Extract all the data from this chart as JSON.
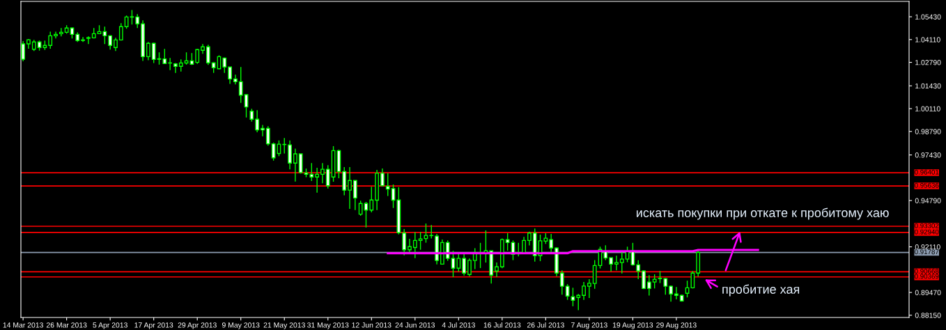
{
  "chart_data": {
    "type": "candlestick",
    "categories": [
      "14 Mar 2013",
      null,
      null,
      null,
      null,
      null,
      null,
      null,
      "26 Mar 2013",
      null,
      null,
      null,
      null,
      null,
      null,
      null,
      "5 Apr 2013",
      null,
      null,
      null,
      null,
      null,
      null,
      null,
      "17 Apr 2013",
      null,
      null,
      null,
      null,
      null,
      null,
      null,
      "29 Apr 2013",
      null,
      null,
      null,
      null,
      null,
      null,
      null,
      "9 May 2013",
      null,
      null,
      null,
      null,
      null,
      null,
      null,
      "21 May 2013",
      null,
      null,
      null,
      null,
      null,
      null,
      null,
      "31 May 2013",
      null,
      null,
      null,
      null,
      null,
      null,
      null,
      "12 Jun 2013",
      null,
      null,
      null,
      null,
      null,
      null,
      null,
      "24 Jun 2013",
      null,
      null,
      null,
      null,
      null,
      null,
      null,
      "4 Jul 2013",
      null,
      null,
      null,
      null,
      null,
      null,
      null,
      "16 Jul 2013",
      null,
      null,
      null,
      null,
      null,
      null,
      null,
      "26 Jul 2013",
      null,
      null,
      null,
      null,
      null,
      null,
      null,
      "7 Aug 2013",
      null,
      null,
      null,
      null,
      null,
      null,
      null,
      "19 Aug 2013",
      null,
      null,
      null,
      null,
      null,
      null,
      null,
      "29 Aug 2013",
      null,
      null,
      null,
      null,
      null,
      null,
      null,
      null,
      null,
      null,
      null,
      null,
      null,
      null,
      null,
      null,
      null,
      null,
      null,
      null,
      null,
      null,
      null,
      null,
      null,
      null,
      null,
      null,
      null,
      null,
      null,
      null,
      null,
      null,
      null,
      null,
      null,
      null,
      null,
      null,
      null,
      null
    ],
    "ohlc": [
      [
        1.0386,
        1.0402,
        1.0285,
        1.0297
      ],
      [
        1.0386,
        1.0414,
        1.0358,
        1.041
      ],
      [
        1.0355,
        1.0409,
        1.0345,
        1.0397
      ],
      [
        1.0397,
        1.0405,
        1.0347,
        1.0365
      ],
      [
        1.0365,
        1.0405,
        1.0351,
        1.0377
      ],
      [
        1.0377,
        1.0457,
        1.0358,
        1.0433
      ],
      [
        1.0433,
        1.0457,
        1.0417,
        1.0441
      ],
      [
        1.0445,
        1.0478,
        1.0429,
        1.0453
      ],
      [
        1.0453,
        1.0494,
        1.0445,
        1.0478
      ],
      [
        1.0478,
        1.0482,
        1.0417,
        1.0441
      ],
      [
        1.0441,
        1.0453,
        1.0397,
        1.0405
      ],
      [
        1.0409,
        1.0425,
        1.0397,
        1.0406
      ],
      [
        1.0418,
        1.0429,
        1.0385,
        1.0422
      ],
      [
        1.0421,
        1.0478,
        1.0417,
        1.0445
      ],
      [
        1.0445,
        1.0494,
        1.0445,
        1.0457
      ],
      [
        1.0457,
        1.0486,
        1.0385,
        1.0433
      ],
      [
        1.0433,
        1.0437,
        1.0353,
        1.0377
      ],
      [
        1.0365,
        1.0421,
        1.0345,
        1.0409
      ],
      [
        1.0409,
        1.0506,
        1.0405,
        1.0486
      ],
      [
        1.0486,
        1.055,
        1.0474,
        1.0542
      ],
      [
        1.0541,
        1.0582,
        1.0498,
        1.0543
      ],
      [
        1.0542,
        1.0558,
        1.0478,
        1.0502
      ],
      [
        1.0502,
        1.0522,
        1.0287,
        1.0312
      ],
      [
        1.0312,
        1.0397,
        1.0291,
        1.0389
      ],
      [
        1.0389,
        1.0393,
        1.0275,
        1.0296
      ],
      [
        1.03,
        1.0337,
        1.0266,
        1.0297
      ],
      [
        1.0299,
        1.0357,
        1.027,
        1.0272
      ],
      [
        1.0275,
        1.0304,
        1.0234,
        1.0276
      ],
      [
        1.027,
        1.0275,
        1.0218,
        1.0256
      ],
      [
        1.0256,
        1.0296,
        1.0226,
        1.0275
      ],
      [
        1.0275,
        1.0337,
        1.0266,
        1.0288
      ],
      [
        1.0288,
        1.0333,
        1.0264,
        1.0268
      ],
      [
        1.0279,
        1.0357,
        1.027,
        1.0353
      ],
      [
        1.0349,
        1.0385,
        1.0329,
        1.0369
      ],
      [
        1.0369,
        1.0381,
        1.0264,
        1.0276
      ],
      [
        1.0276,
        1.028,
        1.0218,
        1.0248
      ],
      [
        1.0242,
        1.032,
        1.024,
        1.0312
      ],
      [
        1.0304,
        1.0308,
        1.0218,
        1.0252
      ],
      [
        1.0252,
        1.0252,
        1.0154,
        1.0183
      ],
      [
        1.0183,
        1.0208,
        1.0151,
        1.0167
      ],
      [
        1.0167,
        1.0252,
        1.0045,
        1.0089
      ],
      [
        1.0092,
        1.0096,
        0.996,
        1.0021
      ],
      [
        0.9996,
        1.001,
        0.9936,
        0.995
      ],
      [
        0.995,
        1.0002,
        0.9874,
        0.9888
      ],
      [
        0.9897,
        0.9917,
        0.9851,
        0.9888
      ],
      [
        0.9897,
        0.9909,
        0.9797,
        0.9807
      ],
      [
        0.9807,
        0.9815,
        0.971,
        0.9726
      ],
      [
        0.9751,
        0.9827,
        0.9736,
        0.9805
      ],
      [
        0.9803,
        0.9841,
        0.9751,
        0.9804
      ],
      [
        0.9801,
        0.9827,
        0.966,
        0.9696
      ],
      [
        0.9696,
        0.9779,
        0.9589,
        0.9749
      ],
      [
        0.9749,
        0.9749,
        0.9635,
        0.9641
      ],
      [
        0.9639,
        0.9664,
        0.9614,
        0.9631
      ],
      [
        0.9631,
        0.9696,
        0.9592,
        0.9615
      ],
      [
        0.9615,
        0.9669,
        0.9525,
        0.9631
      ],
      [
        0.9631,
        0.9696,
        0.9579,
        0.966
      ],
      [
        0.966,
        0.9684,
        0.9549,
        0.9565
      ],
      [
        0.9615,
        0.9794,
        0.9588,
        0.9768
      ],
      [
        0.9768,
        0.9774,
        0.9608,
        0.9647
      ],
      [
        0.9647,
        0.9673,
        0.9509,
        0.9539
      ],
      [
        0.9539,
        0.9673,
        0.9431,
        0.9595
      ],
      [
        0.9595,
        0.9595,
        0.9424,
        0.9494
      ],
      [
        0.94,
        0.9478,
        0.9391,
        0.9462
      ],
      [
        0.9462,
        0.9471,
        0.9323,
        0.9424
      ],
      [
        0.9424,
        0.9559,
        0.9411,
        0.9482
      ],
      [
        0.9481,
        0.9657,
        0.9424,
        0.9637
      ],
      [
        0.9637,
        0.9665,
        0.9564,
        0.9565
      ],
      [
        0.9561,
        0.9637,
        0.9505,
        0.9545
      ],
      [
        0.9548,
        0.9572,
        0.9436,
        0.9481
      ],
      [
        0.9482,
        0.9556,
        0.9283,
        0.9293
      ],
      [
        0.9291,
        0.9314,
        0.9162,
        0.9194
      ],
      [
        0.9194,
        0.9257,
        0.9178,
        0.9212
      ],
      [
        0.9207,
        0.9297,
        0.9146,
        0.9248
      ],
      [
        0.9248,
        0.9297,
        0.9194,
        0.9257
      ],
      [
        0.9259,
        0.9346,
        0.9235,
        0.9277
      ],
      [
        0.9277,
        0.9337,
        0.9259,
        0.9276
      ],
      [
        0.9273,
        0.9286,
        0.9109,
        0.9132
      ],
      [
        0.9111,
        0.9253,
        0.9109,
        0.9236
      ],
      [
        0.9236,
        0.9248,
        0.913,
        0.9144
      ],
      [
        0.9144,
        0.9188,
        0.9036,
        0.9087
      ],
      [
        0.9087,
        0.9174,
        0.9068,
        0.9144
      ],
      [
        0.9144,
        0.9174,
        0.9045,
        0.9059
      ],
      [
        0.9051,
        0.9144,
        0.9041,
        0.9133
      ],
      [
        0.9132,
        0.9203,
        0.9082,
        0.9174
      ],
      [
        0.9173,
        0.9234,
        0.9088,
        0.9176
      ],
      [
        0.9172,
        0.9306,
        0.912,
        0.9188
      ],
      [
        0.9188,
        0.9188,
        0.8999,
        0.9047
      ],
      [
        0.9071,
        0.912,
        0.9037,
        0.9095
      ],
      [
        0.9095,
        0.9259,
        0.9087,
        0.9253
      ],
      [
        0.9253,
        0.929,
        0.9189,
        0.9236
      ],
      [
        0.9236,
        0.9248,
        0.9134,
        0.9168
      ],
      [
        0.9172,
        0.9234,
        0.9156,
        0.9171
      ],
      [
        0.9176,
        0.9269,
        0.917,
        0.9248
      ],
      [
        0.9248,
        0.9299,
        0.9219,
        0.9291
      ],
      [
        0.9291,
        0.9317,
        0.9125,
        0.916
      ],
      [
        0.916,
        0.9282,
        0.9128,
        0.9246
      ],
      [
        0.9244,
        0.929,
        0.9228,
        0.9261
      ],
      [
        0.9253,
        0.9286,
        0.9182,
        0.9204
      ],
      [
        0.9204,
        0.9208,
        0.9041,
        0.9059
      ],
      [
        0.9059,
        0.9075,
        0.8934,
        0.8983
      ],
      [
        0.8983,
        0.8995,
        0.8904,
        0.8926
      ],
      [
        0.8922,
        0.8974,
        0.8867,
        0.8902
      ],
      [
        0.8918,
        0.8938,
        0.8844,
        0.893
      ],
      [
        0.893,
        0.9008,
        0.8904,
        0.8984
      ],
      [
        0.8983,
        0.9024,
        0.8915,
        0.9
      ],
      [
        0.8999,
        0.9134,
        0.8968,
        0.9103
      ],
      [
        0.9103,
        0.9212,
        0.9086,
        0.9196
      ],
      [
        0.9184,
        0.922,
        0.9134,
        0.9146
      ],
      [
        0.9148,
        0.9148,
        0.9068,
        0.9111
      ],
      [
        0.9111,
        0.916,
        0.9075,
        0.912
      ],
      [
        0.912,
        0.918,
        0.9057,
        0.914
      ],
      [
        0.914,
        0.9212,
        0.9122,
        0.9184
      ],
      [
        0.9188,
        0.9234,
        0.9102,
        0.9107
      ],
      [
        0.9107,
        0.9134,
        0.9024,
        0.9071
      ],
      [
        0.9071,
        0.9075,
        0.8966,
        0.897
      ],
      [
        0.9007,
        0.9047,
        0.8929,
        0.897
      ],
      [
        0.9007,
        0.9052,
        0.897,
        0.9023
      ],
      [
        0.9027,
        0.9071,
        0.9001,
        0.9029
      ],
      [
        0.9027,
        0.9031,
        0.8934,
        0.8983
      ],
      [
        0.8983,
        0.8987,
        0.8894,
        0.8938
      ],
      [
        0.8938,
        0.8978,
        0.8907,
        0.893
      ],
      [
        0.893,
        0.8934,
        0.8894,
        0.8898
      ],
      [
        0.8942,
        0.9015,
        0.8918,
        0.8974
      ],
      [
        0.8974,
        0.9071,
        0.897,
        0.9059
      ],
      [
        0.9059,
        0.9188,
        0.9039,
        0.9179
      ],
      null,
      null,
      null,
      null,
      null,
      null,
      null,
      null,
      null,
      null,
      null,
      null,
      null,
      null,
      null,
      null,
      null,
      null,
      null,
      null,
      null,
      null,
      null,
      null,
      null,
      null,
      null,
      null,
      null,
      null,
      null,
      null,
      null,
      null,
      null,
      null,
      null,
      null
    ],
    "series": [
      {
        "type": "line",
        "color": "#ff00ff",
        "values": [
          null,
          null,
          null,
          null,
          null,
          null,
          null,
          null,
          null,
          null,
          null,
          null,
          null,
          null,
          null,
          null,
          null,
          null,
          null,
          null,
          null,
          null,
          null,
          null,
          null,
          null,
          null,
          null,
          null,
          null,
          null,
          null,
          null,
          null,
          null,
          null,
          null,
          null,
          null,
          null,
          null,
          null,
          null,
          null,
          null,
          null,
          null,
          null,
          null,
          null,
          null,
          null,
          null,
          null,
          null,
          null,
          null,
          null,
          null,
          null,
          null,
          null,
          null,
          null,
          null,
          null,
          null,
          0.9174,
          0.9174,
          0.9174,
          0.9174,
          0.9174,
          0.9174,
          0.9174,
          0.9174,
          0.9174,
          0.9174,
          0.9174,
          0.9174,
          0.9174,
          0.9174,
          0.9174,
          0.9174,
          0.9174,
          0.9174,
          0.9174,
          0.9174,
          0.9174,
          0.9174,
          0.9174,
          0.9174,
          0.9174,
          0.9174,
          0.9174,
          0.9174,
          0.9174,
          0.9174,
          0.9174,
          0.9174,
          0.9174,
          0.9174,
          0.9186,
          0.9186,
          0.9186,
          0.9186,
          0.9186,
          0.9186,
          0.9186,
          0.9186,
          0.9186,
          0.9186,
          0.9186,
          0.9186,
          0.9186,
          0.9186,
          0.9186,
          0.9186,
          0.9186,
          0.9186,
          0.9186,
          0.9186,
          0.9186,
          0.9186,
          0.9186,
          0.9193,
          0.9193,
          0.9193,
          0.9193,
          0.9193,
          0.9193,
          0.9193,
          0.9193,
          0.9193,
          0.9193,
          0.9193,
          0.9193,
          null,
          null,
          null,
          null,
          null,
          null,
          null,
          null,
          null,
          null,
          null,
          null,
          null,
          null,
          null,
          null,
          null,
          null,
          null,
          null,
          null,
          null,
          null,
          null,
          null,
          null,
          null
        ]
      }
    ],
    "ylim": [
      0.8802,
      1.0632
    ],
    "yticks": [
      {
        "value": 1.0543,
        "label": "1.05430"
      },
      {
        "value": 1.0411,
        "label": "1.04110"
      },
      {
        "value": 1.0279,
        "label": "1.02790"
      },
      {
        "value": 1.0143,
        "label": "1.01430"
      },
      {
        "value": 1.0011,
        "label": "1.00110"
      },
      {
        "value": 0.9879,
        "label": "0.98790"
      },
      {
        "value": 0.9743,
        "label": "0.97430"
      },
      {
        "value": 0.9479,
        "label": "0.94790"
      },
      {
        "value": 0.9211,
        "label": "0.92110"
      },
      {
        "value": 0.8947,
        "label": "0.89470"
      },
      {
        "value": 0.8815,
        "label": "0.88150"
      }
    ],
    "ref_lines": [
      {
        "axis": "y",
        "value": 0.96401,
        "label": "0.96401",
        "color": "#ff0000"
      },
      {
        "axis": "y",
        "value": 0.95636,
        "label": "0.95636",
        "color": "#ff0000"
      },
      {
        "axis": "y",
        "value": 0.93302,
        "label": "0.93302",
        "color": "#ff0000"
      },
      {
        "axis": "y",
        "value": 0.9294,
        "label": "0.92940",
        "color": "#ff0000"
      },
      {
        "axis": "y",
        "value": 0.91787,
        "label": "0.91787",
        "color": "#8c9cb0"
      },
      {
        "axis": "y",
        "value": 0.90668,
        "label": "0.90668",
        "color": "#ff0000"
      },
      {
        "axis": "y",
        "value": 0.90369,
        "label": "0.90369",
        "color": "#ff0000"
      }
    ],
    "annotations": [
      {
        "text": "искать покупки при откате к пробитому хаю",
        "y": 0.931
      },
      {
        "text": "пробитие хая",
        "y": 0.9028
      }
    ]
  }
}
